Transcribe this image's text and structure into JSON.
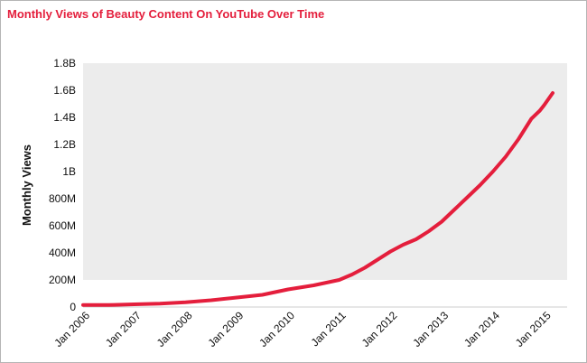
{
  "chart_data": {
    "type": "line",
    "title": "Monthly Views of Beauty Content On YouTube Over Time",
    "xlabel": "",
    "ylabel": "Monthly Views",
    "x_tick_labels": [
      "Jan 2006",
      "Jan 2007",
      "Jan 2008",
      "Jan 2009",
      "Jan 2010",
      "Jan 2011",
      "Jan 2012",
      "Jan 2013",
      "Jan 2014",
      "Jan 2015"
    ],
    "y_ticks": [
      {
        "value": 0,
        "label": "0"
      },
      {
        "value": 200000000,
        "label": "200M"
      },
      {
        "value": 400000000,
        "label": "400M"
      },
      {
        "value": 600000000,
        "label": "600M"
      },
      {
        "value": 800000000,
        "label": "800M"
      },
      {
        "value": 1000000000,
        "label": "1B"
      },
      {
        "value": 1200000000,
        "label": "1.2B"
      },
      {
        "value": 1400000000,
        "label": "1.4B"
      },
      {
        "value": 1600000000,
        "label": "1.6B"
      },
      {
        "value": 1800000000,
        "label": "1.8B"
      }
    ],
    "ylim": [
      0,
      1800000000
    ],
    "xlim": [
      "2006-01",
      "2015-03"
    ],
    "grid": "alternating horizontal bands",
    "colors": {
      "line": "#e41e3c",
      "band": "#ececec",
      "title": "#e41e3c"
    },
    "series": [
      {
        "x": [
          "2006-01",
          "2006-07",
          "2007-01",
          "2007-07",
          "2008-01",
          "2008-07",
          "2009-01",
          "2009-07",
          "2010-01",
          "2010-07",
          "2011-01",
          "2011-04",
          "2011-07",
          "2011-10",
          "2012-01",
          "2012-04",
          "2012-07",
          "2012-08",
          "2012-10",
          "2013-01",
          "2013-04",
          "2013-07",
          "2013-10",
          "2014-01",
          "2014-04",
          "2014-07",
          "2014-10",
          "2014-12",
          "2015-01",
          "2015-03"
        ],
        "values": [
          15000000,
          15000000,
          20000000,
          25000000,
          35000000,
          50000000,
          70000000,
          90000000,
          130000000,
          160000000,
          200000000,
          240000000,
          290000000,
          350000000,
          410000000,
          460000000,
          500000000,
          520000000,
          560000000,
          630000000,
          720000000,
          810000000,
          900000000,
          1000000000,
          1110000000,
          1240000000,
          1390000000,
          1450000000,
          1490000000,
          1580000000
        ]
      }
    ]
  }
}
